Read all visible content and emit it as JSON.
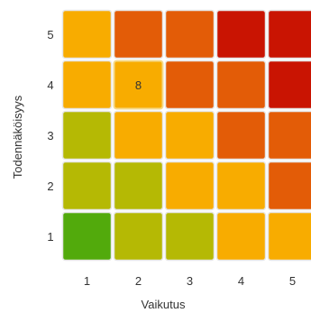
{
  "chart_data": {
    "type": "heatmap",
    "title": "",
    "xlabel": "Vaikutus",
    "ylabel": "Todennäköisyys",
    "x_categories": [
      "1",
      "2",
      "3",
      "4",
      "5"
    ],
    "y_categories": [
      "1",
      "2",
      "3",
      "4",
      "5"
    ],
    "palette": {
      "green": "#52aa0c",
      "yellow_green": "#b5b904",
      "amber": "#f8ac00",
      "orange": "#e35c07",
      "red": "#c91402"
    },
    "cells_by_row_top_to_bottom": [
      {
        "y": "5",
        "colors": [
          "amber",
          "orange",
          "orange",
          "red",
          "red"
        ],
        "labels": [
          "",
          "",
          "",
          "",
          ""
        ]
      },
      {
        "y": "4",
        "colors": [
          "amber",
          "amber",
          "orange",
          "orange",
          "red"
        ],
        "labels": [
          "",
          "8",
          "",
          "",
          ""
        ]
      },
      {
        "y": "3",
        "colors": [
          "yellow_green",
          "amber",
          "amber",
          "orange",
          "orange"
        ],
        "labels": [
          "",
          "",
          "",
          "",
          ""
        ]
      },
      {
        "y": "2",
        "colors": [
          "yellow_green",
          "yellow_green",
          "amber",
          "amber",
          "orange"
        ],
        "labels": [
          "",
          "",
          "",
          "",
          ""
        ]
      },
      {
        "y": "1",
        "colors": [
          "green",
          "yellow_green",
          "yellow_green",
          "amber",
          "amber"
        ],
        "labels": [
          "",
          "",
          "",
          "",
          ""
        ]
      }
    ],
    "highlighted_cell": {
      "x": "2",
      "y": "4"
    },
    "grid": false,
    "legend": "none"
  }
}
